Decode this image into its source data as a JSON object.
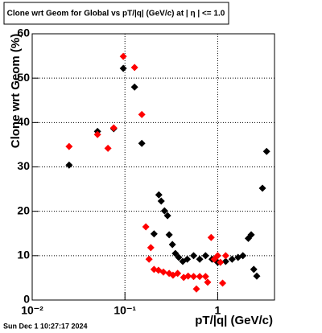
{
  "chart_data": {
    "type": "scatter",
    "title": "Clone wrt Geom for Global vs pT/|q| (GeV/c) at |  η  | <= 1.0",
    "x_label": "pT/|q| (GeV/c)",
    "y_label": "Clone wrt Geom (%)",
    "footer": "Sun Dec  1 10:27:17 2024",
    "xscale": "log",
    "grid": true,
    "xlim": [
      0.01,
      4.1
    ],
    "ylim": [
      0,
      60
    ],
    "xticks": [
      {
        "value": 0.01,
        "label": "10⁻²"
      },
      {
        "value": 0.1,
        "label": "10⁻¹"
      },
      1
    ],
    "yticks": [
      0,
      10,
      20,
      30,
      40,
      50,
      60
    ],
    "series": [
      {
        "name": "black",
        "color": "#000000",
        "x": [
          0.025,
          0.0506,
          0.0757,
          0.096,
          0.127,
          0.152,
          0.206,
          0.232,
          0.246,
          0.267,
          0.288,
          0.3,
          0.325,
          0.35,
          0.38,
          0.42,
          0.47,
          0.55,
          0.64,
          0.74,
          0.87,
          1.0,
          1.22,
          1.43,
          1.66,
          1.87,
          2.14,
          2.3,
          2.45,
          2.64,
          3.04,
          3.37
        ],
        "values": [
          30.4,
          38.0,
          38.6,
          52.2,
          48.0,
          35.3,
          14.9,
          23.7,
          22.3,
          20.1,
          19.0,
          14.7,
          12.5,
          10.5,
          9.6,
          8.7,
          9.2,
          10.0,
          9.2,
          10.0,
          9.2,
          8.5,
          8.7,
          9.2,
          9.6,
          10.0,
          13.9,
          14.7,
          6.9,
          5.4,
          25.2,
          33.5
        ]
      },
      {
        "name": "red",
        "color": "#ff0000",
        "x": [
          0.025,
          0.0506,
          0.0656,
          0.0757,
          0.096,
          0.127,
          0.152,
          0.168,
          0.182,
          0.19,
          0.206,
          0.23,
          0.26,
          0.3,
          0.33,
          0.37,
          0.43,
          0.48,
          0.55,
          0.59,
          0.64,
          0.74,
          0.78,
          0.85,
          0.92,
          1.0,
          1.07,
          1.13,
          1.22
        ],
        "values": [
          34.6,
          37.3,
          34.2,
          38.8,
          54.9,
          52.4,
          41.8,
          16.5,
          9.2,
          11.8,
          6.9,
          6.7,
          6.3,
          6.0,
          5.6,
          6.0,
          5.1,
          5.4,
          5.3,
          2.5,
          5.3,
          5.3,
          4.0,
          14.1,
          9.2,
          10.0,
          8.5,
          3.8,
          10.0
        ]
      }
    ]
  }
}
